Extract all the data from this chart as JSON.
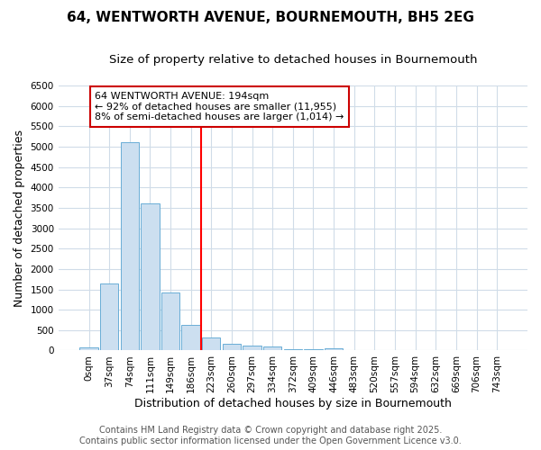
{
  "title_line1": "64, WENTWORTH AVENUE, BOURNEMOUTH, BH5 2EG",
  "title_line2": "Size of property relative to detached houses in Bournemouth",
  "xlabel": "Distribution of detached houses by size in Bournemouth",
  "ylabel": "Number of detached properties",
  "bar_labels": [
    "0sqm",
    "37sqm",
    "74sqm",
    "111sqm",
    "149sqm",
    "186sqm",
    "223sqm",
    "260sqm",
    "297sqm",
    "334sqm",
    "372sqm",
    "409sqm",
    "446sqm",
    "483sqm",
    "520sqm",
    "557sqm",
    "594sqm",
    "632sqm",
    "669sqm",
    "706sqm",
    "743sqm"
  ],
  "bar_values": [
    75,
    1650,
    5100,
    3600,
    1430,
    620,
    310,
    155,
    130,
    95,
    35,
    25,
    55,
    0,
    0,
    0,
    0,
    0,
    0,
    0,
    0
  ],
  "bar_color": "#ccdff0",
  "bar_edge_color": "#6aaed6",
  "vline_color": "#ff0000",
  "vline_x": 5.5,
  "annotation_box_text": "64 WENTWORTH AVENUE: 194sqm\n← 92% of detached houses are smaller (11,955)\n8% of semi-detached houses are larger (1,014) →",
  "annotation_box_color": "#cc0000",
  "ylim": [
    0,
    6500
  ],
  "yticks": [
    0,
    500,
    1000,
    1500,
    2000,
    2500,
    3000,
    3500,
    4000,
    4500,
    5000,
    5500,
    6000,
    6500
  ],
  "footer_line1": "Contains HM Land Registry data © Crown copyright and database right 2025.",
  "footer_line2": "Contains public sector information licensed under the Open Government Licence v3.0.",
  "background_color": "#ffffff",
  "plot_bg_color": "#ffffff",
  "grid_color": "#d0dce8",
  "title_fontsize": 11,
  "subtitle_fontsize": 9.5,
  "axis_label_fontsize": 9,
  "tick_fontsize": 7.5,
  "footer_fontsize": 7
}
